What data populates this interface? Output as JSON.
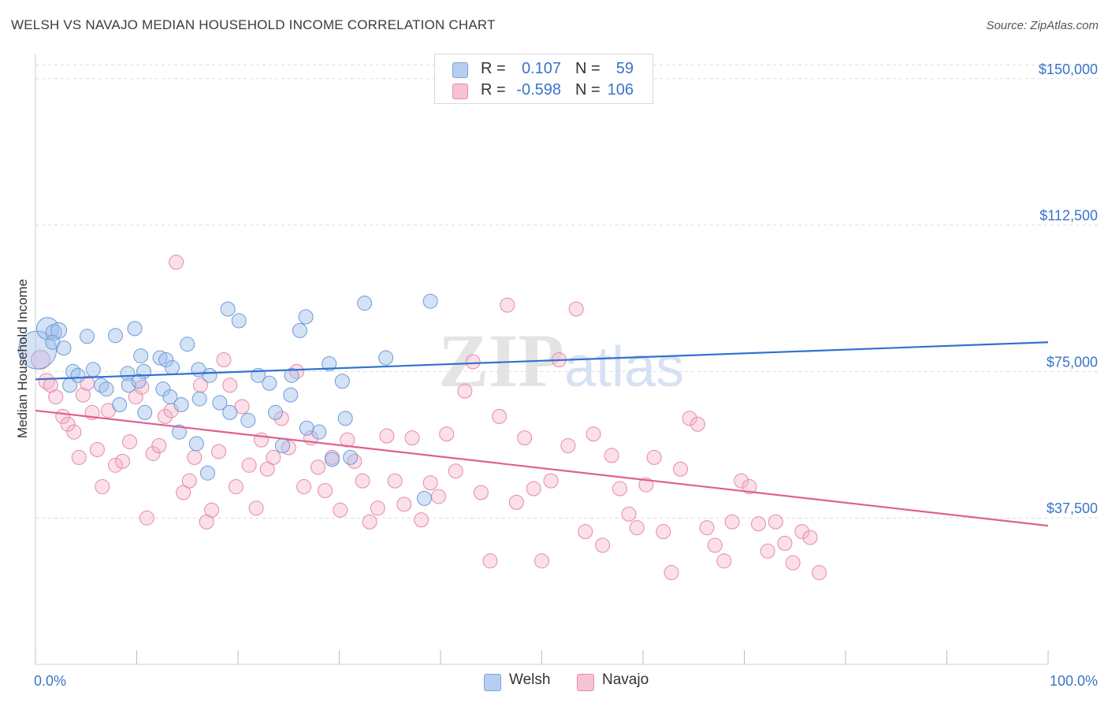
{
  "title": "WELSH VS NAVAJO MEDIAN HOUSEHOLD INCOME CORRELATION CHART",
  "source": "Source: ZipAtlas.com",
  "watermark": {
    "zip": "ZIP",
    "atlas": "atlas"
  },
  "legend": {
    "r_label": "R =",
    "n_label": "N =",
    "rows": [
      {
        "name": "Welsh",
        "r": "0.107",
        "n": "59",
        "fill": "#b6cff0",
        "stroke": "#7aa3dc"
      },
      {
        "name": "Navajo",
        "r": "-0.598",
        "n": "106",
        "fill": "#f7c2d3",
        "stroke": "#e88aab"
      }
    ]
  },
  "colors": {
    "welsh_point_fill": "rgba(160,190,235,0.45)",
    "welsh_point_stroke": "#6f9ad8",
    "welsh_line": "#2f72cf",
    "navajo_point_fill": "rgba(245,175,200,0.40)",
    "navajo_point_stroke": "#e58aab",
    "navajo_line": "#e0608f",
    "axis_label": "#3a74c8",
    "grid": "#dcdcdc"
  },
  "chart_data": {
    "type": "scatter",
    "title": "WELSH VS NAVAJO MEDIAN HOUSEHOLD INCOME CORRELATION CHART",
    "xlabel": "",
    "ylabel": "Median Household Income",
    "xlim": [
      0,
      100
    ],
    "ylim": [
      0,
      155000
    ],
    "x_tick_labels": [
      "0.0%",
      "100.0%"
    ],
    "y_ticks": [
      37500,
      75000,
      112500,
      150000
    ],
    "y_tick_labels": [
      "$37,500",
      "$75,000",
      "$112,500",
      "$150,000"
    ],
    "grid": true,
    "legend_position": "top-center",
    "series": [
      {
        "name": "Welsh",
        "trend": {
          "x": [
            0,
            100
          ],
          "y": [
            73000,
            82500
          ]
        },
        "points": [
          [
            0.2,
            80500,
            24
          ],
          [
            1.2,
            86000,
            14
          ],
          [
            1.8,
            85000,
            10
          ],
          [
            2.3,
            85500,
            10
          ],
          [
            1.7,
            82500,
            9
          ],
          [
            2.8,
            81000,
            9
          ],
          [
            5.1,
            84000,
            9
          ],
          [
            7.9,
            84200,
            9
          ],
          [
            9.8,
            86000,
            9
          ],
          [
            3.4,
            71500,
            9
          ],
          [
            3.7,
            75000,
            9
          ],
          [
            4.2,
            74000,
            9
          ],
          [
            5.7,
            75500,
            9
          ],
          [
            6.5,
            71500,
            9
          ],
          [
            7.0,
            70500,
            9
          ],
          [
            8.3,
            66500,
            9
          ],
          [
            9.1,
            74500,
            9
          ],
          [
            9.2,
            71500,
            9
          ],
          [
            10.4,
            79000,
            9
          ],
          [
            10.8,
            64500,
            9
          ],
          [
            10.7,
            75000,
            9
          ],
          [
            10.2,
            72500,
            9
          ],
          [
            12.3,
            78500,
            9
          ],
          [
            12.9,
            78000,
            9
          ],
          [
            13.5,
            76000,
            9
          ],
          [
            12.6,
            70500,
            9
          ],
          [
            13.3,
            68500,
            9
          ],
          [
            14.4,
            66500,
            9
          ],
          [
            15.0,
            82000,
            9
          ],
          [
            14.2,
            59500,
            9
          ],
          [
            15.9,
            56500,
            9
          ],
          [
            16.2,
            68000,
            9
          ],
          [
            16.1,
            75500,
            9
          ],
          [
            17.2,
            74000,
            9
          ],
          [
            17.0,
            49000,
            9
          ],
          [
            18.2,
            67000,
            9
          ],
          [
            19.0,
            91000,
            9
          ],
          [
            19.2,
            64500,
            9
          ],
          [
            20.1,
            88000,
            9
          ],
          [
            21.0,
            62500,
            9
          ],
          [
            22.0,
            74000,
            9
          ],
          [
            23.1,
            72000,
            9
          ],
          [
            23.7,
            64500,
            9
          ],
          [
            24.4,
            56000,
            9
          ],
          [
            25.2,
            69000,
            9
          ],
          [
            26.7,
            89000,
            9
          ],
          [
            26.1,
            85500,
            9
          ],
          [
            25.3,
            74000,
            9
          ],
          [
            26.8,
            60500,
            9
          ],
          [
            28.0,
            59500,
            9
          ],
          [
            29.0,
            77000,
            9
          ],
          [
            29.3,
            52500,
            9
          ],
          [
            30.3,
            72500,
            9
          ],
          [
            30.6,
            63000,
            9
          ],
          [
            31.1,
            53000,
            9
          ],
          [
            32.5,
            92500,
            9
          ],
          [
            34.6,
            78500,
            9
          ],
          [
            38.4,
            42500,
            9
          ],
          [
            39.0,
            93000,
            9
          ]
        ]
      },
      {
        "name": "Navajo",
        "trend": {
          "x": [
            0,
            100
          ],
          "y": [
            65000,
            35500
          ]
        },
        "points": [
          [
            0.5,
            78000,
            12
          ],
          [
            1.1,
            72500,
            10
          ],
          [
            1.5,
            71500,
            9
          ],
          [
            2.0,
            68500,
            9
          ],
          [
            2.7,
            63500,
            9
          ],
          [
            3.2,
            61500,
            9
          ],
          [
            3.8,
            59500,
            9
          ],
          [
            4.3,
            53000,
            9
          ],
          [
            4.7,
            69000,
            9
          ],
          [
            5.1,
            72000,
            9
          ],
          [
            5.6,
            64500,
            9
          ],
          [
            6.1,
            55000,
            9
          ],
          [
            6.6,
            45500,
            9
          ],
          [
            7.2,
            65000,
            9
          ],
          [
            7.9,
            51000,
            9
          ],
          [
            8.6,
            52000,
            9
          ],
          [
            9.3,
            57000,
            9
          ],
          [
            9.9,
            68500,
            9
          ],
          [
            10.5,
            71000,
            9
          ],
          [
            11.0,
            37500,
            9
          ],
          [
            11.6,
            54000,
            9
          ],
          [
            12.2,
            56000,
            9
          ],
          [
            12.8,
            63500,
            9
          ],
          [
            13.4,
            65000,
            9
          ],
          [
            13.9,
            103000,
            9
          ],
          [
            14.6,
            44000,
            9
          ],
          [
            15.2,
            47000,
            9
          ],
          [
            15.7,
            53000,
            9
          ],
          [
            16.3,
            71500,
            9
          ],
          [
            16.9,
            36500,
            9
          ],
          [
            17.4,
            39500,
            9
          ],
          [
            18.1,
            54500,
            9
          ],
          [
            18.6,
            78000,
            9
          ],
          [
            19.2,
            71500,
            9
          ],
          [
            19.8,
            45500,
            9
          ],
          [
            20.4,
            66000,
            9
          ],
          [
            21.1,
            51000,
            9
          ],
          [
            21.8,
            40000,
            9
          ],
          [
            22.3,
            57500,
            9
          ],
          [
            22.9,
            50000,
            9
          ],
          [
            23.5,
            53000,
            9
          ],
          [
            24.3,
            63000,
            9
          ],
          [
            25.0,
            55500,
            9
          ],
          [
            25.8,
            75000,
            9
          ],
          [
            26.5,
            45500,
            9
          ],
          [
            27.2,
            58000,
            9
          ],
          [
            27.9,
            50500,
            9
          ],
          [
            28.6,
            44500,
            9
          ],
          [
            29.3,
            53000,
            9
          ],
          [
            30.1,
            39500,
            9
          ],
          [
            30.8,
            57500,
            9
          ],
          [
            31.5,
            52000,
            9
          ],
          [
            32.3,
            47000,
            9
          ],
          [
            33.0,
            36500,
            9
          ],
          [
            33.8,
            40000,
            9
          ],
          [
            34.7,
            58500,
            9
          ],
          [
            35.5,
            47000,
            9
          ],
          [
            36.4,
            41000,
            9
          ],
          [
            37.2,
            58000,
            9
          ],
          [
            38.1,
            37000,
            9
          ],
          [
            39.0,
            46500,
            9
          ],
          [
            39.8,
            43000,
            9
          ],
          [
            40.6,
            59000,
            9
          ],
          [
            41.5,
            49500,
            9
          ],
          [
            42.4,
            70000,
            9
          ],
          [
            43.2,
            77500,
            9
          ],
          [
            44.0,
            44000,
            9
          ],
          [
            44.9,
            26500,
            9
          ],
          [
            45.8,
            63500,
            9
          ],
          [
            46.6,
            92000,
            9
          ],
          [
            47.5,
            41500,
            9
          ],
          [
            48.3,
            58000,
            9
          ],
          [
            49.2,
            45000,
            9
          ],
          [
            50.0,
            26500,
            9
          ],
          [
            50.9,
            47000,
            9
          ],
          [
            51.7,
            78000,
            9
          ],
          [
            52.6,
            56000,
            9
          ],
          [
            53.4,
            91000,
            9
          ],
          [
            54.3,
            34000,
            9
          ],
          [
            55.1,
            59000,
            9
          ],
          [
            56.0,
            30500,
            9
          ],
          [
            56.9,
            53500,
            9
          ],
          [
            57.7,
            45000,
            9
          ],
          [
            58.6,
            38500,
            9
          ],
          [
            59.4,
            35000,
            9
          ],
          [
            60.3,
            46000,
            9
          ],
          [
            61.1,
            53000,
            9
          ],
          [
            62.0,
            34000,
            9
          ],
          [
            62.8,
            23500,
            9
          ],
          [
            63.7,
            50000,
            9
          ],
          [
            64.6,
            63000,
            9
          ],
          [
            65.4,
            61500,
            9
          ],
          [
            66.3,
            35000,
            9
          ],
          [
            67.1,
            30500,
            9
          ],
          [
            68.0,
            26500,
            9
          ],
          [
            68.8,
            36500,
            9
          ],
          [
            69.7,
            47000,
            9
          ],
          [
            70.5,
            45500,
            9
          ],
          [
            71.4,
            36000,
            9
          ],
          [
            72.3,
            29000,
            9
          ],
          [
            73.1,
            36500,
            9
          ],
          [
            74.0,
            31000,
            9
          ],
          [
            74.8,
            26000,
            9
          ],
          [
            75.7,
            34000,
            9
          ],
          [
            76.5,
            32500,
            9
          ],
          [
            77.4,
            23500,
            9
          ]
        ]
      }
    ]
  }
}
